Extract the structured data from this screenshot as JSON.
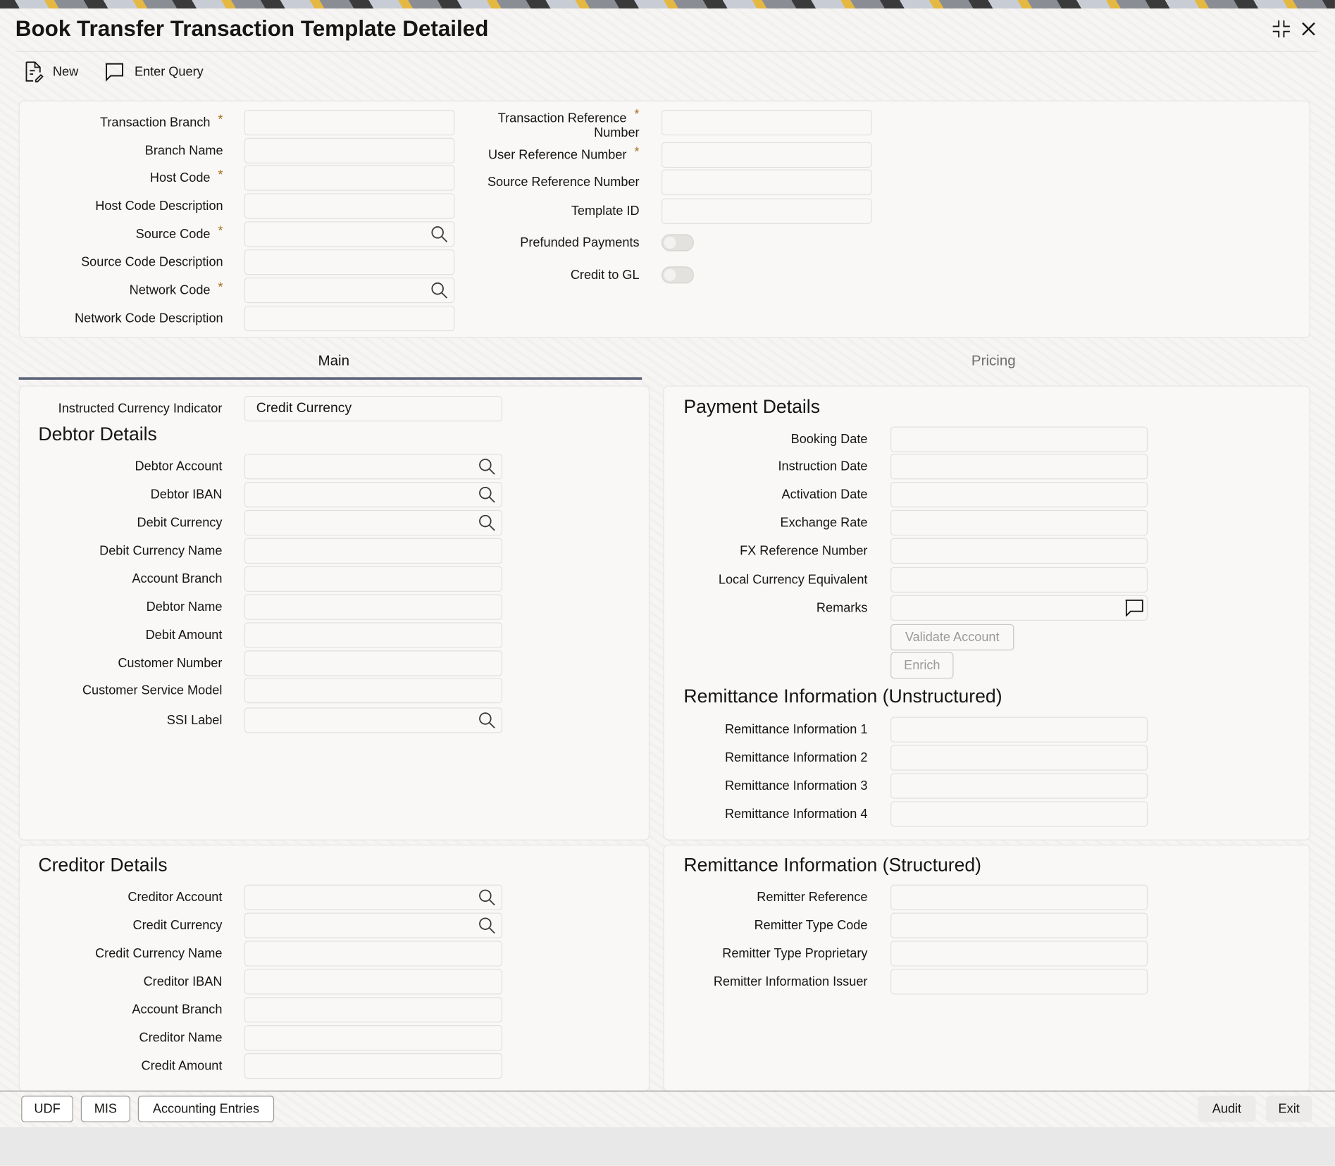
{
  "window": {
    "title": "Book Transfer Transaction Template Detailed",
    "maximize_icon": "collapse-icon",
    "close_icon": "close-icon"
  },
  "toolbar": {
    "new_label": "New",
    "enter_query_label": "Enter Query"
  },
  "header_left": [
    {
      "label": "Transaction Branch",
      "required": true
    },
    {
      "label": "Branch Name"
    },
    {
      "label": "Host Code",
      "required": true
    },
    {
      "label": "Host Code Description"
    },
    {
      "label": "Source Code",
      "required": true,
      "search": true
    },
    {
      "label": "Source Code Description"
    },
    {
      "label": "Network Code",
      "required": true,
      "search": true
    },
    {
      "label": "Network Code Description"
    }
  ],
  "header_right": [
    {
      "label": "Transaction Reference",
      "label2": "Number",
      "required": true
    },
    {
      "label": "User Reference Number",
      "required": true
    },
    {
      "label": "Source Reference Number"
    },
    {
      "label": "Template ID"
    },
    {
      "label": "Prefunded Payments",
      "toggle": true,
      "value": false
    },
    {
      "label": "Credit to GL",
      "toggle": true,
      "value": false
    }
  ],
  "tabs": [
    {
      "label": "Main",
      "active": true
    },
    {
      "label": "Pricing",
      "active": false
    }
  ],
  "main": {
    "instructed_currency": {
      "label": "Instructed Currency Indicator",
      "value": "Credit Currency"
    },
    "debtor_title": "Debtor Details",
    "debtor": [
      {
        "label": "Debtor Account",
        "search": true
      },
      {
        "label": "Debtor IBAN",
        "search": true
      },
      {
        "label": "Debit Currency",
        "search": true
      },
      {
        "label": "Debit Currency Name"
      },
      {
        "label": "Account Branch"
      },
      {
        "label": "Debtor Name"
      },
      {
        "label": "Debit Amount"
      },
      {
        "label": "Customer Number"
      },
      {
        "label": "Customer Service Model"
      },
      {
        "label": "SSI Label",
        "search": true
      }
    ],
    "payment_title": "Payment Details",
    "payment": [
      {
        "label": "Booking Date"
      },
      {
        "label": "Instruction Date"
      },
      {
        "label": "Activation Date"
      },
      {
        "label": "Exchange Rate"
      },
      {
        "label": "FX Reference Number"
      },
      {
        "label": "Local Currency Equivalent"
      },
      {
        "label": "Remarks",
        "chat": true
      }
    ],
    "validate_account_label": "Validate Account",
    "enrich_label": "Enrich",
    "remit_unstructured_title": "Remittance Information (Unstructured)",
    "remit_unstructured": [
      {
        "label": "Remittance Information 1"
      },
      {
        "label": "Remittance Information 2"
      },
      {
        "label": "Remittance Information 3"
      },
      {
        "label": "Remittance Information 4"
      }
    ],
    "creditor_title": "Creditor Details",
    "creditor": [
      {
        "label": "Creditor Account",
        "search": true
      },
      {
        "label": "Credit Currency",
        "search": true
      },
      {
        "label": "Credit Currency Name"
      },
      {
        "label": "Creditor IBAN"
      },
      {
        "label": "Account Branch"
      },
      {
        "label": "Creditor Name"
      },
      {
        "label": "Credit Amount"
      }
    ],
    "remit_structured_title": "Remittance Information (Structured)",
    "remit_structured": [
      {
        "label": "Remitter Reference"
      },
      {
        "label": "Remitter Type Code"
      },
      {
        "label": "Remitter Type Proprietary"
      },
      {
        "label": "Remitter Information Issuer"
      }
    ]
  },
  "footer": {
    "udf": "UDF",
    "mis": "MIS",
    "accounting": "Accounting Entries",
    "audit": "Audit",
    "exit": "Exit"
  }
}
